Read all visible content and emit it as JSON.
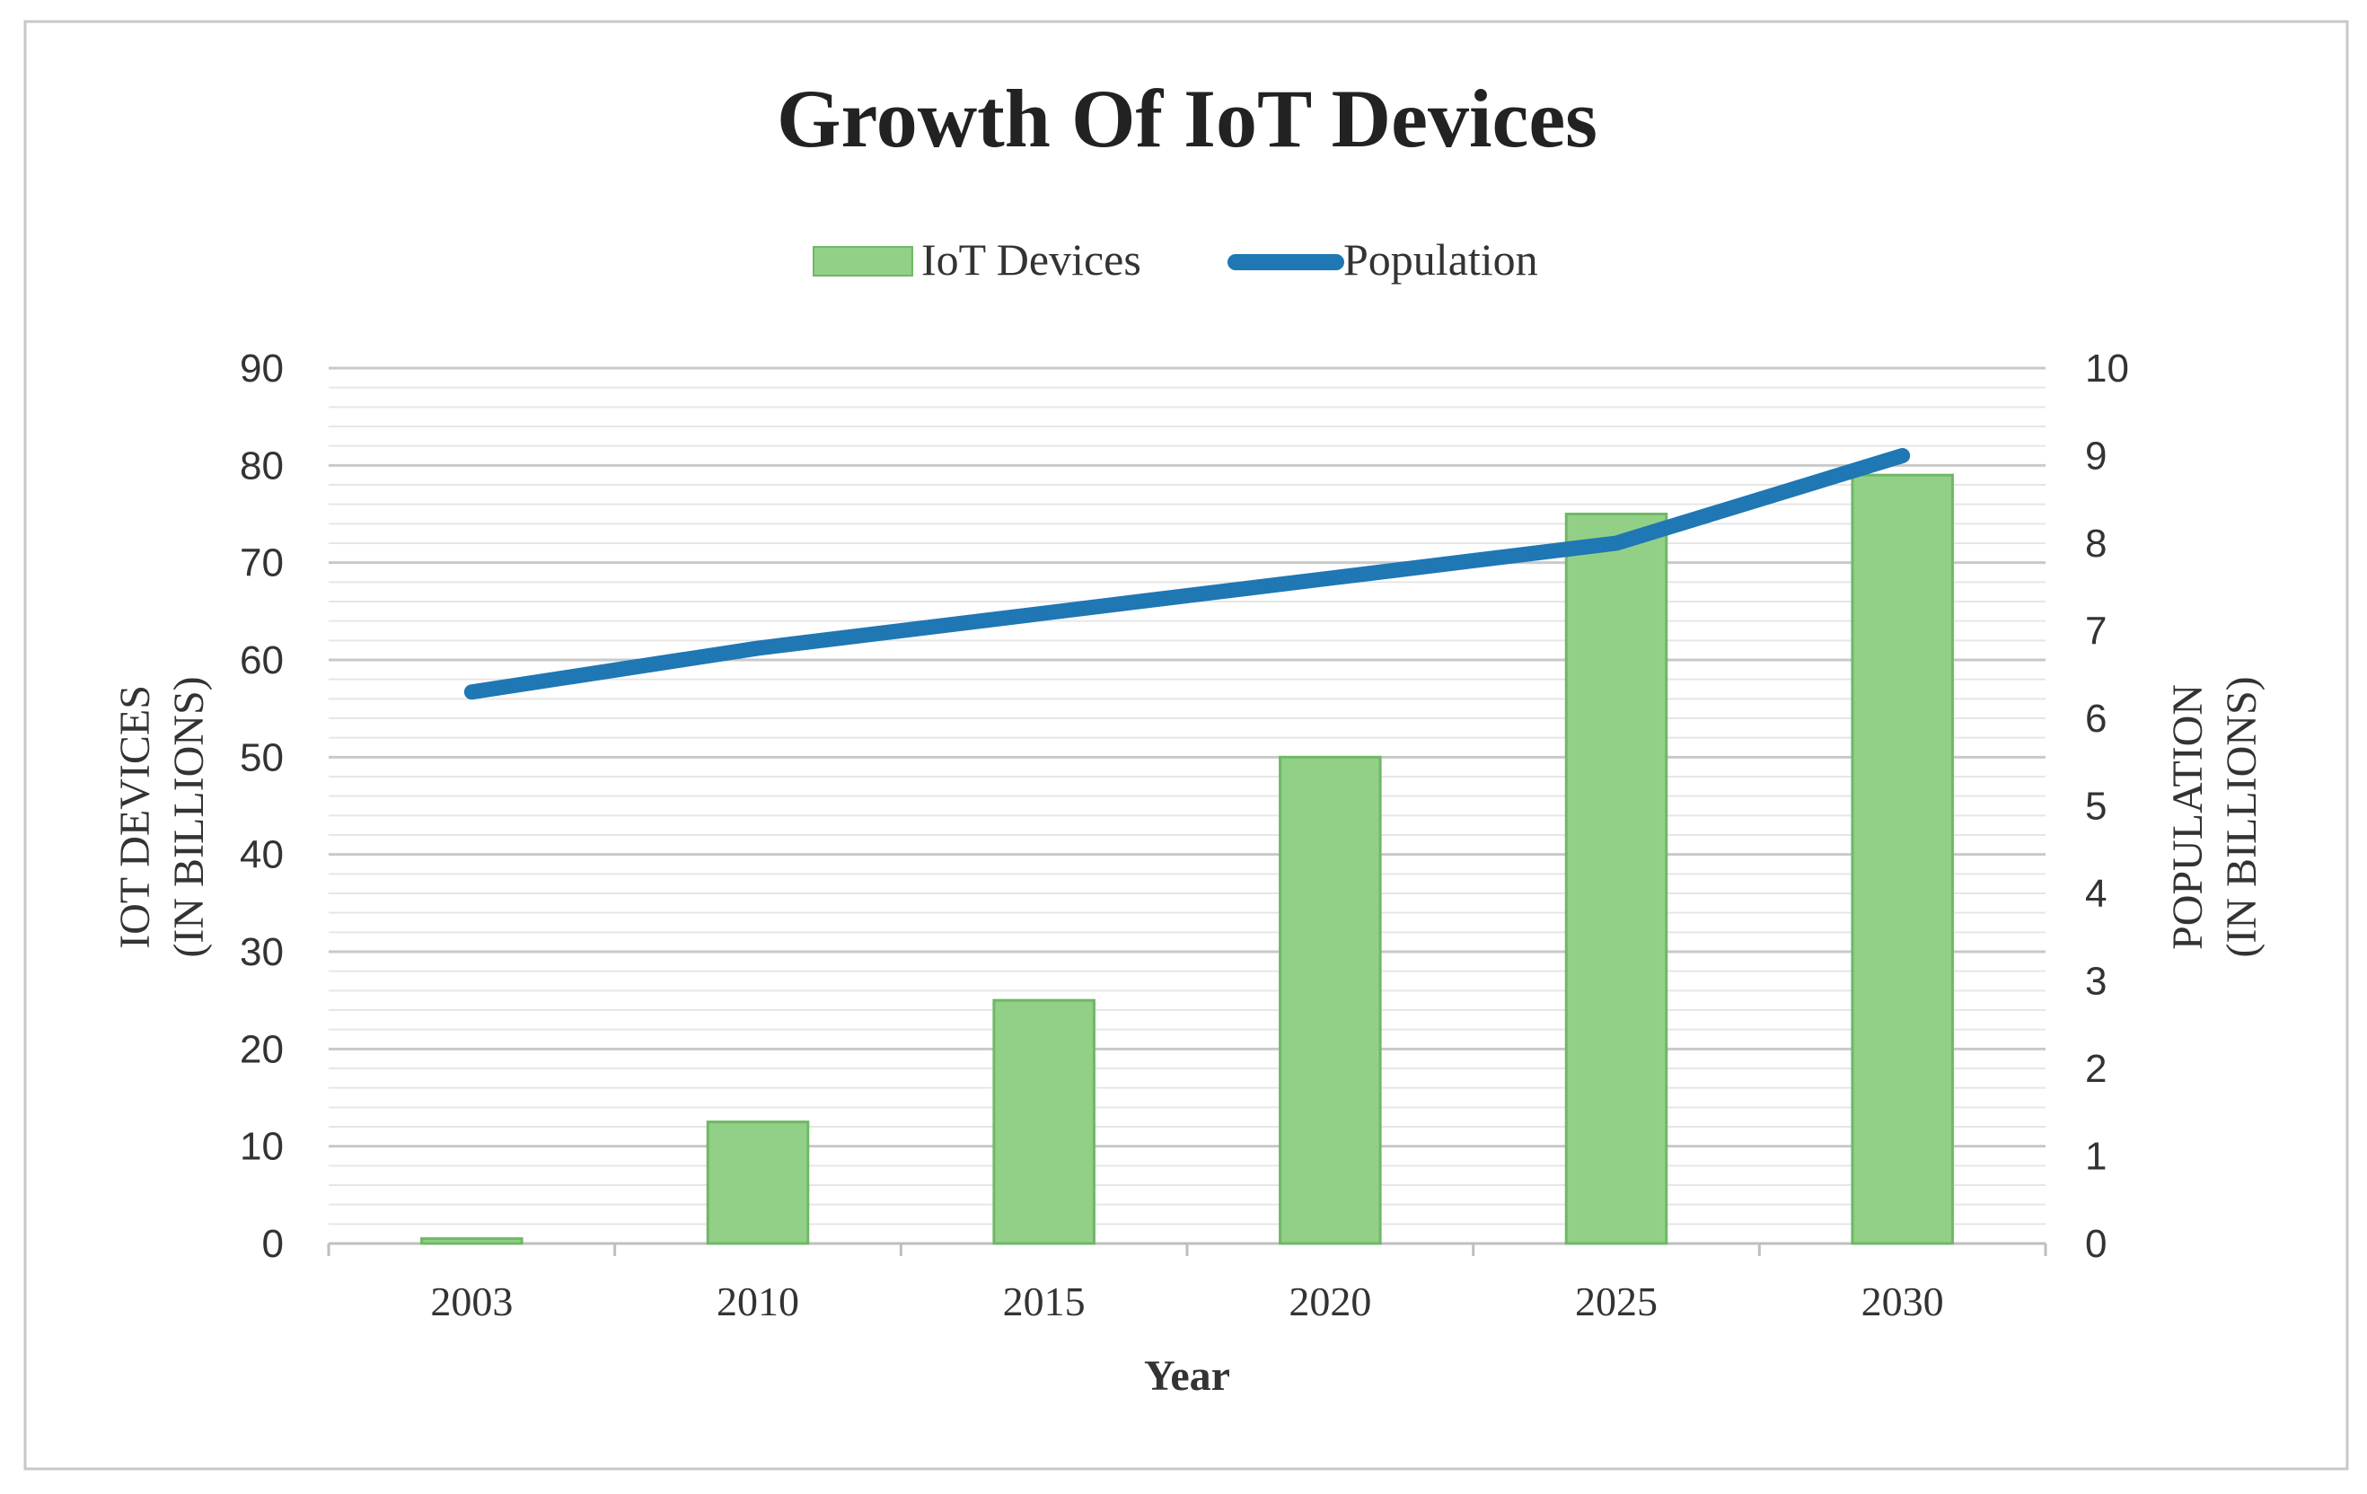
{
  "chart_data": {
    "type": "bar",
    "title": "Growth Of IoT Devices",
    "xlabel": "Year",
    "ylabel": "IOT DEVICES\n(IN BILLIONS)",
    "ylabel_line1": "IOT DEVICES",
    "ylabel_line2": "(IN BILLIONS)",
    "y2label_line1": "POPULATION",
    "y2label_line2": "(IN BILLIONS)",
    "categories": [
      "2003",
      "2010",
      "2015",
      "2020",
      "2025",
      "2030"
    ],
    "ylim": [
      0,
      90
    ],
    "y2lim": [
      0,
      10
    ],
    "y_ticks": [
      "0",
      "10",
      "20",
      "30",
      "40",
      "50",
      "60",
      "70",
      "80",
      "90"
    ],
    "y2_ticks": [
      "0",
      "1",
      "2",
      "3",
      "4",
      "5",
      "6",
      "7",
      "8",
      "9",
      "10"
    ],
    "grid": true,
    "legend_position": "top-center",
    "series": [
      {
        "name": "IoT Devices",
        "type": "bar",
        "axis": "left",
        "color": "#92d087",
        "edge_color": "#6fb866",
        "values": [
          0.5,
          12.5,
          25,
          50,
          75,
          79
        ]
      },
      {
        "name": "Population",
        "type": "line",
        "axis": "right",
        "color": "#1f77b4",
        "values": [
          6.3,
          6.8,
          7.2,
          7.6,
          8.0,
          9.0
        ]
      }
    ]
  }
}
